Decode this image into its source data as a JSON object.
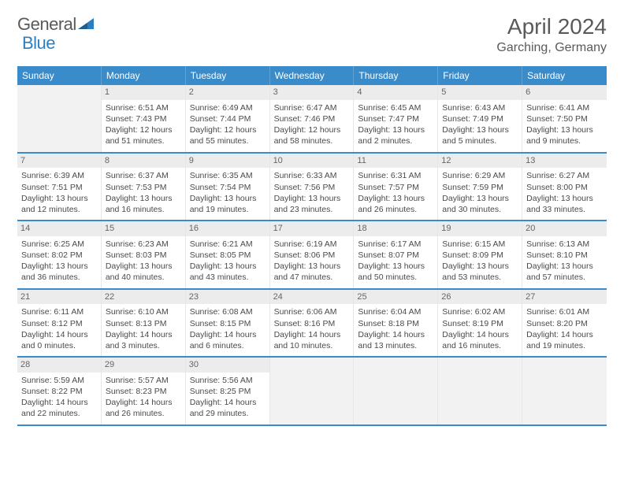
{
  "logo": {
    "word1": "General",
    "word2": "Blue"
  },
  "header": {
    "month_title": "April 2024",
    "location": "Garching, Germany"
  },
  "colors": {
    "header_bg": "#3a8bc9",
    "header_text": "#ffffff",
    "rule": "#3a8bc9",
    "daynum_bg": "#edecec",
    "empty_bg": "#f2f2f2",
    "body_text": "#4a4a4a",
    "title_text": "#5a5a5a"
  },
  "days_of_week": [
    "Sunday",
    "Monday",
    "Tuesday",
    "Wednesday",
    "Thursday",
    "Friday",
    "Saturday"
  ],
  "weeks": [
    [
      {
        "empty": true
      },
      {
        "n": "1",
        "sunrise": "6:51 AM",
        "sunset": "7:43 PM",
        "daylight": "12 hours and 51 minutes."
      },
      {
        "n": "2",
        "sunrise": "6:49 AM",
        "sunset": "7:44 PM",
        "daylight": "12 hours and 55 minutes."
      },
      {
        "n": "3",
        "sunrise": "6:47 AM",
        "sunset": "7:46 PM",
        "daylight": "12 hours and 58 minutes."
      },
      {
        "n": "4",
        "sunrise": "6:45 AM",
        "sunset": "7:47 PM",
        "daylight": "13 hours and 2 minutes."
      },
      {
        "n": "5",
        "sunrise": "6:43 AM",
        "sunset": "7:49 PM",
        "daylight": "13 hours and 5 minutes."
      },
      {
        "n": "6",
        "sunrise": "6:41 AM",
        "sunset": "7:50 PM",
        "daylight": "13 hours and 9 minutes."
      }
    ],
    [
      {
        "n": "7",
        "sunrise": "6:39 AM",
        "sunset": "7:51 PM",
        "daylight": "13 hours and 12 minutes."
      },
      {
        "n": "8",
        "sunrise": "6:37 AM",
        "sunset": "7:53 PM",
        "daylight": "13 hours and 16 minutes."
      },
      {
        "n": "9",
        "sunrise": "6:35 AM",
        "sunset": "7:54 PM",
        "daylight": "13 hours and 19 minutes."
      },
      {
        "n": "10",
        "sunrise": "6:33 AM",
        "sunset": "7:56 PM",
        "daylight": "13 hours and 23 minutes."
      },
      {
        "n": "11",
        "sunrise": "6:31 AM",
        "sunset": "7:57 PM",
        "daylight": "13 hours and 26 minutes."
      },
      {
        "n": "12",
        "sunrise": "6:29 AM",
        "sunset": "7:59 PM",
        "daylight": "13 hours and 30 minutes."
      },
      {
        "n": "13",
        "sunrise": "6:27 AM",
        "sunset": "8:00 PM",
        "daylight": "13 hours and 33 minutes."
      }
    ],
    [
      {
        "n": "14",
        "sunrise": "6:25 AM",
        "sunset": "8:02 PM",
        "daylight": "13 hours and 36 minutes."
      },
      {
        "n": "15",
        "sunrise": "6:23 AM",
        "sunset": "8:03 PM",
        "daylight": "13 hours and 40 minutes."
      },
      {
        "n": "16",
        "sunrise": "6:21 AM",
        "sunset": "8:05 PM",
        "daylight": "13 hours and 43 minutes."
      },
      {
        "n": "17",
        "sunrise": "6:19 AM",
        "sunset": "8:06 PM",
        "daylight": "13 hours and 47 minutes."
      },
      {
        "n": "18",
        "sunrise": "6:17 AM",
        "sunset": "8:07 PM",
        "daylight": "13 hours and 50 minutes."
      },
      {
        "n": "19",
        "sunrise": "6:15 AM",
        "sunset": "8:09 PM",
        "daylight": "13 hours and 53 minutes."
      },
      {
        "n": "20",
        "sunrise": "6:13 AM",
        "sunset": "8:10 PM",
        "daylight": "13 hours and 57 minutes."
      }
    ],
    [
      {
        "n": "21",
        "sunrise": "6:11 AM",
        "sunset": "8:12 PM",
        "daylight": "14 hours and 0 minutes."
      },
      {
        "n": "22",
        "sunrise": "6:10 AM",
        "sunset": "8:13 PM",
        "daylight": "14 hours and 3 minutes."
      },
      {
        "n": "23",
        "sunrise": "6:08 AM",
        "sunset": "8:15 PM",
        "daylight": "14 hours and 6 minutes."
      },
      {
        "n": "24",
        "sunrise": "6:06 AM",
        "sunset": "8:16 PM",
        "daylight": "14 hours and 10 minutes."
      },
      {
        "n": "25",
        "sunrise": "6:04 AM",
        "sunset": "8:18 PM",
        "daylight": "14 hours and 13 minutes."
      },
      {
        "n": "26",
        "sunrise": "6:02 AM",
        "sunset": "8:19 PM",
        "daylight": "14 hours and 16 minutes."
      },
      {
        "n": "27",
        "sunrise": "6:01 AM",
        "sunset": "8:20 PM",
        "daylight": "14 hours and 19 minutes."
      }
    ],
    [
      {
        "n": "28",
        "sunrise": "5:59 AM",
        "sunset": "8:22 PM",
        "daylight": "14 hours and 22 minutes."
      },
      {
        "n": "29",
        "sunrise": "5:57 AM",
        "sunset": "8:23 PM",
        "daylight": "14 hours and 26 minutes."
      },
      {
        "n": "30",
        "sunrise": "5:56 AM",
        "sunset": "8:25 PM",
        "daylight": "14 hours and 29 minutes."
      },
      {
        "empty": true
      },
      {
        "empty": true
      },
      {
        "empty": true
      },
      {
        "empty": true
      }
    ]
  ],
  "labels": {
    "sunrise": "Sunrise: ",
    "sunset": "Sunset: ",
    "daylight": "Daylight: "
  }
}
